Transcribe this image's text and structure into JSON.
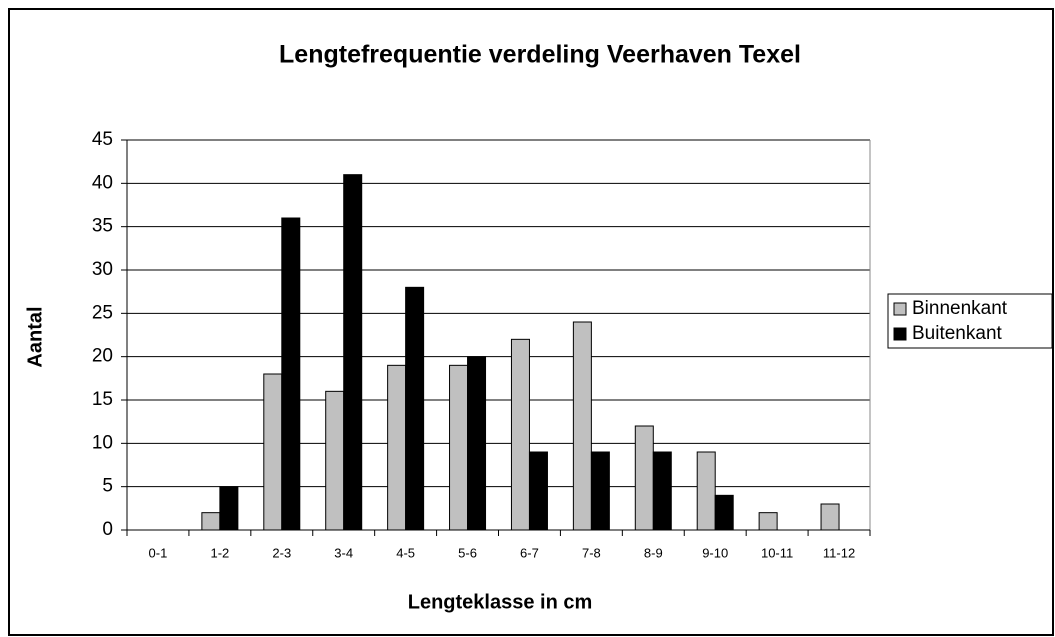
{
  "chart_data": {
    "type": "bar",
    "title": "Lengtefrequentie verdeling Veerhaven Texel",
    "x_label": "Lengteklasse in cm",
    "y_label": "Aantal",
    "categories": [
      "0-1",
      "1-2",
      "2-3",
      "3-4",
      "4-5",
      "5-6",
      "6-7",
      "7-8",
      "8-9",
      "9-10",
      "10-11",
      "11-12"
    ],
    "series": [
      {
        "name": "Binnenkant",
        "color": "#c0c0c0",
        "values": [
          0,
          2,
          18,
          16,
          19,
          19,
          22,
          24,
          12,
          9,
          2,
          3
        ]
      },
      {
        "name": "Buitenkant",
        "color": "#000000",
        "values": [
          0,
          5,
          36,
          41,
          28,
          20,
          9,
          9,
          9,
          4,
          0,
          0
        ]
      }
    ],
    "ylim": [
      0,
      45
    ],
    "yticks": [
      0,
      5,
      10,
      15,
      20,
      25,
      30,
      35,
      40,
      45
    ],
    "grid": true,
    "legend": "right"
  }
}
